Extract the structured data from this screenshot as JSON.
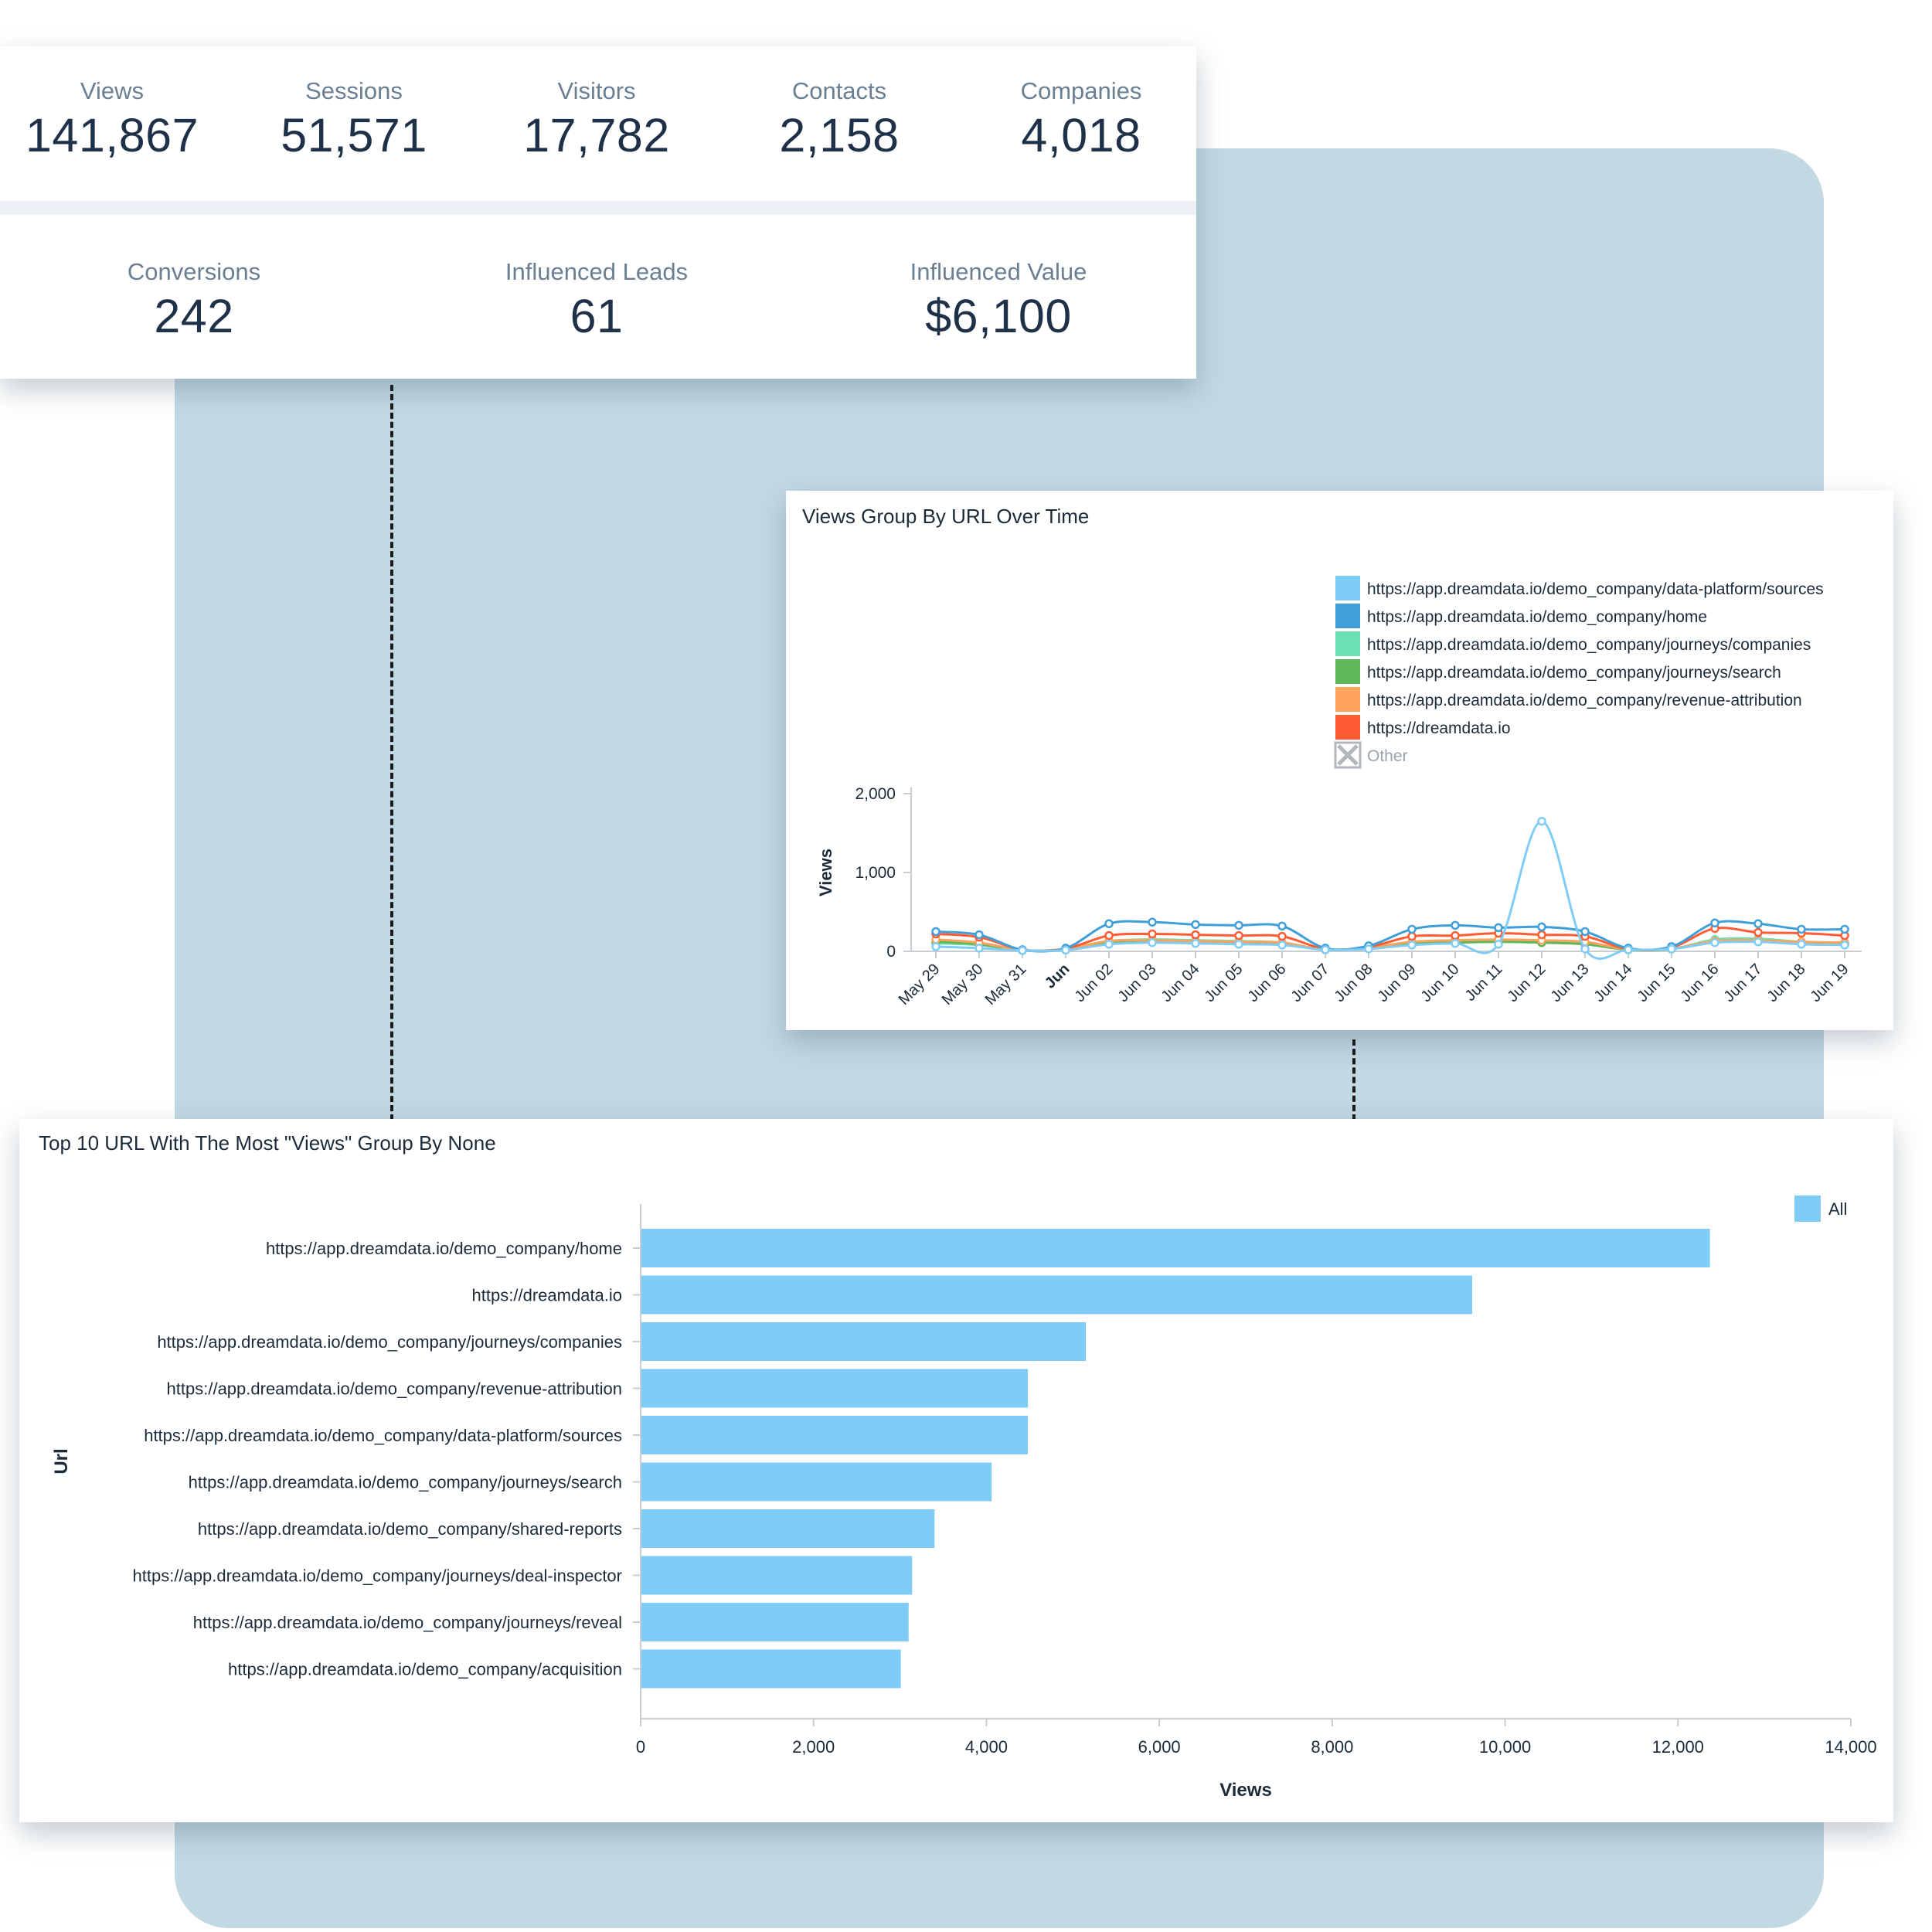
{
  "kpis_row1": [
    {
      "label": "Views",
      "value": "141,867"
    },
    {
      "label": "Sessions",
      "value": "51,571"
    },
    {
      "label": "Visitors",
      "value": "17,782"
    },
    {
      "label": "Contacts",
      "value": "2,158"
    },
    {
      "label": "Companies",
      "value": "4,018"
    }
  ],
  "kpis_row2": [
    {
      "label": "Conversions",
      "value": "242"
    },
    {
      "label": "Influenced Leads",
      "value": "61"
    },
    {
      "label": "Influenced Value",
      "value": "$6,100"
    }
  ],
  "colors": {
    "panel_bg": "#c2d9e4",
    "sources": "#7fcdf6",
    "home": "#3f9fd8",
    "companies": "#6ddfb5",
    "search": "#5fb85a",
    "revenue": "#ffa35c",
    "dreamdata": "#ff5c33",
    "other": "#b0b6bc",
    "bar": "#7fcdf6"
  },
  "chart_data": [
    {
      "type": "line",
      "title": "Views Group By URL Over Time",
      "ylabel": "Views",
      "xlabel": "",
      "ylim": [
        0,
        2000
      ],
      "yticks": [
        0,
        1000,
        2000
      ],
      "ytick_labels": [
        "0",
        "1,000",
        "2,000"
      ],
      "categories": [
        "May 29",
        "May 30",
        "May 31",
        "Jun",
        "Jun 02",
        "Jun 03",
        "Jun 04",
        "Jun 05",
        "Jun 06",
        "Jun 07",
        "Jun 08",
        "Jun 09",
        "Jun 10",
        "Jun 11",
        "Jun 12",
        "Jun 13",
        "Jun 14",
        "Jun 15",
        "Jun 16",
        "Jun 17",
        "Jun 18",
        "Jun 19"
      ],
      "legend": [
        {
          "name": "https://app.dreamdata.io/demo_company/data-platform/sources",
          "color_key": "sources"
        },
        {
          "name": "https://app.dreamdata.io/demo_company/home",
          "color_key": "home"
        },
        {
          "name": "https://app.dreamdata.io/demo_company/journeys/companies",
          "color_key": "companies"
        },
        {
          "name": "https://app.dreamdata.io/demo_company/journeys/search",
          "color_key": "search"
        },
        {
          "name": "https://app.dreamdata.io/demo_company/revenue-attribution",
          "color_key": "revenue"
        },
        {
          "name": "https://dreamdata.io",
          "color_key": "dreamdata"
        },
        {
          "name": "Other",
          "color_key": "other",
          "hidden": true
        }
      ],
      "series": [
        {
          "name": "https://app.dreamdata.io/demo_company/data-platform/sources",
          "color_key": "sources",
          "values": [
            60,
            40,
            10,
            15,
            90,
            110,
            100,
            90,
            80,
            20,
            30,
            80,
            100,
            90,
            1650,
            30,
            20,
            30,
            110,
            120,
            90,
            80
          ]
        },
        {
          "name": "https://app.dreamdata.io/demo_company/home",
          "color_key": "home",
          "values": [
            250,
            210,
            20,
            40,
            350,
            370,
            340,
            330,
            320,
            40,
            70,
            280,
            330,
            300,
            310,
            250,
            40,
            60,
            360,
            350,
            280,
            280
          ]
        },
        {
          "name": "https://app.dreamdata.io/demo_company/journeys/companies",
          "color_key": "companies",
          "values": [
            100,
            80,
            10,
            20,
            130,
            150,
            140,
            130,
            110,
            20,
            40,
            110,
            140,
            130,
            130,
            110,
            20,
            30,
            150,
            160,
            120,
            110
          ]
        },
        {
          "name": "https://app.dreamdata.io/demo_company/journeys/search",
          "color_key": "search",
          "values": [
            120,
            90,
            10,
            25,
            110,
            130,
            110,
            100,
            90,
            20,
            40,
            100,
            110,
            120,
            110,
            90,
            20,
            30,
            120,
            130,
            100,
            90
          ]
        },
        {
          "name": "https://app.dreamdata.io/demo_company/revenue-attribution",
          "color_key": "revenue",
          "values": [
            150,
            110,
            15,
            30,
            130,
            140,
            130,
            120,
            110,
            20,
            45,
            120,
            140,
            150,
            140,
            120,
            25,
            35,
            130,
            140,
            120,
            110
          ]
        },
        {
          "name": "https://dreamdata.io",
          "color_key": "dreamdata",
          "values": [
            220,
            180,
            20,
            35,
            200,
            220,
            210,
            200,
            190,
            30,
            55,
            190,
            200,
            230,
            210,
            190,
            30,
            50,
            290,
            240,
            230,
            200
          ]
        }
      ]
    },
    {
      "type": "bar",
      "orientation": "horizontal",
      "title": "Top 10 URL With The Most \"Views\" Group By None",
      "xlabel": "Views",
      "ylabel": "Url",
      "xlim": [
        0,
        14000
      ],
      "xticks": [
        0,
        2000,
        4000,
        6000,
        8000,
        10000,
        12000,
        14000
      ],
      "xtick_labels": [
        "0",
        "2,000",
        "4,000",
        "6,000",
        "8,000",
        "10,000",
        "12,000",
        "14,000"
      ],
      "legend": [
        {
          "name": "All",
          "color_key": "bar"
        }
      ],
      "categories": [
        "https://app.dreamdata.io/demo_company/home",
        "https://dreamdata.io",
        "https://app.dreamdata.io/demo_company/journeys/companies",
        "https://app.dreamdata.io/demo_company/revenue-attribution",
        "https://app.dreamdata.io/demo_company/data-platform/sources",
        "https://app.dreamdata.io/demo_company/journeys/search",
        "https://app.dreamdata.io/demo_company/shared-reports",
        "https://app.dreamdata.io/demo_company/journeys/deal-inspector",
        "https://app.dreamdata.io/demo_company/journeys/reveal",
        "https://app.dreamdata.io/demo_company/acquisition"
      ],
      "values": [
        12370,
        9620,
        5150,
        4480,
        4480,
        4060,
        3400,
        3140,
        3100,
        3010
      ]
    }
  ]
}
